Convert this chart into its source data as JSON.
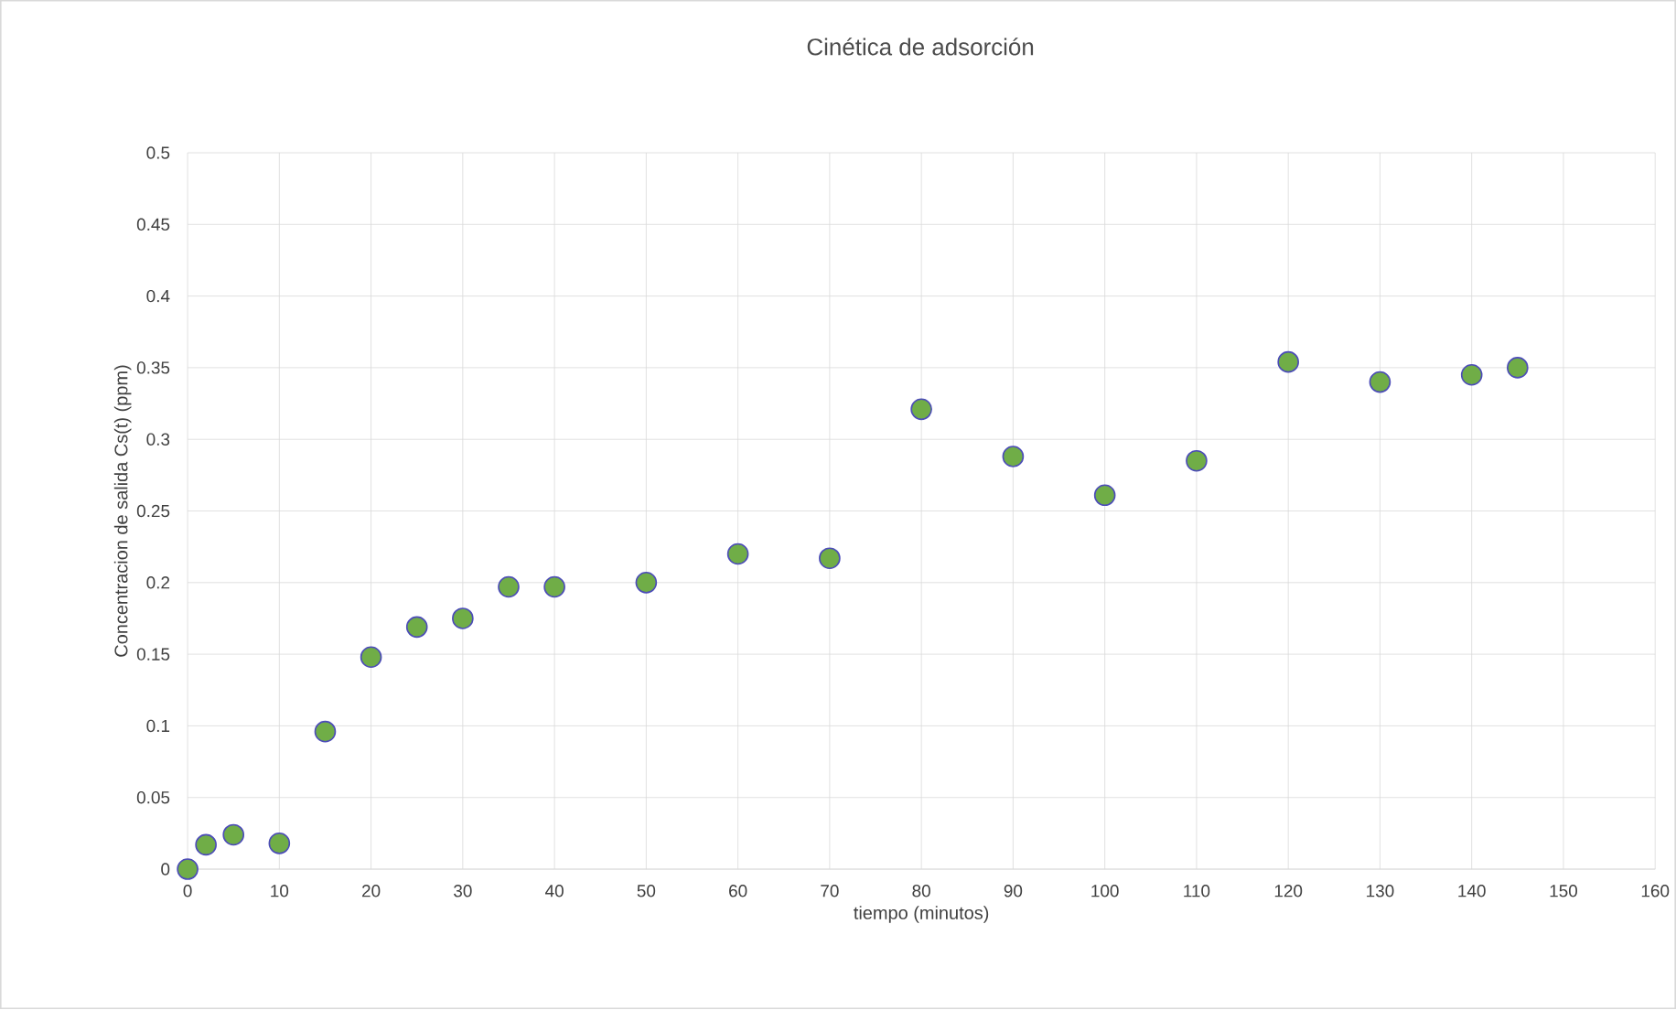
{
  "chart_data": {
    "type": "scatter",
    "title": "Cinética de adsorción",
    "xlabel": "tiempo (minutos)",
    "ylabel": "Concentracion  de salida Cs(t) (ppm)",
    "x": [
      0,
      2,
      5,
      10,
      15,
      20,
      25,
      30,
      35,
      40,
      50,
      60,
      70,
      80,
      90,
      100,
      110,
      120,
      130,
      140,
      145
    ],
    "values": [
      0,
      0.017,
      0.024,
      0.018,
      0.096,
      0.148,
      0.169,
      0.175,
      0.197,
      0.197,
      0.2,
      0.22,
      0.217,
      0.321,
      0.288,
      0.261,
      0.285,
      0.354,
      0.34,
      0.345,
      0.35
    ],
    "color": "#70ad47",
    "marker": "circle",
    "xlim": [
      0,
      160
    ],
    "xticks": [
      0,
      10,
      20,
      30,
      40,
      50,
      60,
      70,
      80,
      90,
      100,
      110,
      120,
      130,
      140,
      150,
      160
    ],
    "ylim": [
      0,
      0.5
    ],
    "yticks": [
      0,
      0.05,
      0.1,
      0.15,
      0.2,
      0.25,
      0.3,
      0.35,
      0.4,
      0.45,
      0.5
    ],
    "grid": true
  }
}
